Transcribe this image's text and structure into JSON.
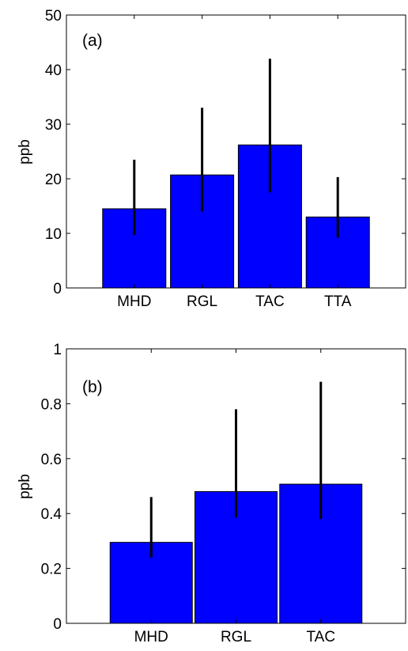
{
  "chart_data": [
    {
      "type": "bar",
      "panel_label": "(a)",
      "ylabel": "ppb",
      "ylim": [
        0,
        50
      ],
      "yticks": [
        0,
        10,
        20,
        30,
        40,
        50
      ],
      "categories": [
        "MHD",
        "RGL",
        "TAC",
        "TTA"
      ],
      "values": [
        14.5,
        20.7,
        26.2,
        13.0
      ],
      "error_low": [
        9.7,
        14.0,
        17.5,
        9.2
      ],
      "error_high": [
        23.5,
        33.0,
        42.0,
        20.3
      ],
      "bar_color": "#0000ff",
      "grid": false
    },
    {
      "type": "bar",
      "panel_label": "(b)",
      "ylabel": "ppb",
      "ylim": [
        0,
        1
      ],
      "yticks": [
        0,
        0.2,
        0.4,
        0.6,
        0.8,
        1
      ],
      "ytick_labels": [
        "0",
        "0.2",
        "0.4",
        "0.6",
        "0.8",
        "1"
      ],
      "categories": [
        "MHD",
        "RGL",
        "TAC"
      ],
      "values": [
        0.295,
        0.48,
        0.507
      ],
      "error_low": [
        0.24,
        0.385,
        0.38
      ],
      "error_high": [
        0.46,
        0.78,
        0.88
      ],
      "bar_color": "#0000ff",
      "grid": false
    }
  ]
}
